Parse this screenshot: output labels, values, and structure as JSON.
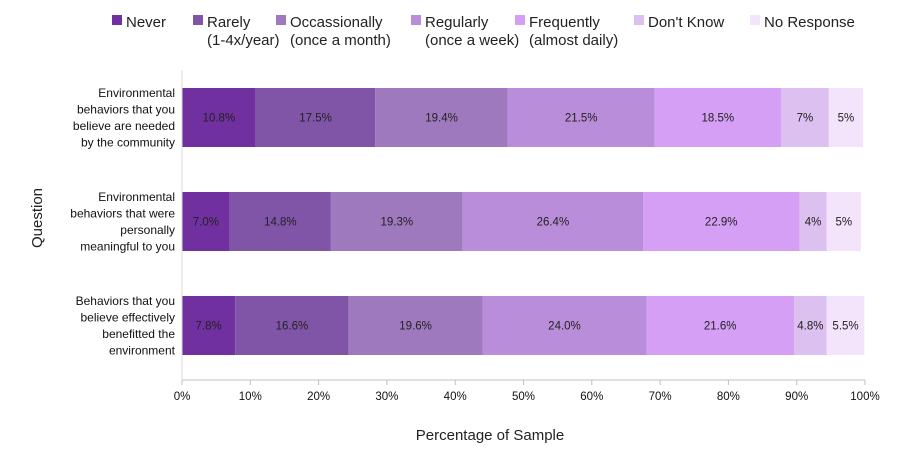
{
  "chart_data": {
    "type": "bar",
    "orientation": "horizontal",
    "stacked": true,
    "title": "",
    "xlabel": "Percentage of Sample",
    "ylabel": "Question",
    "xlim": [
      0,
      100
    ],
    "xticks": [
      "0%",
      "10%",
      "20%",
      "30%",
      "40%",
      "50%",
      "60%",
      "70%",
      "80%",
      "90%",
      "100%"
    ],
    "legend_position": "top",
    "categories": [
      [
        "Environmental",
        "behaviors that you",
        "believe are needed",
        "by the community"
      ],
      [
        "Environmental",
        "behaviors that were",
        "personally",
        "meaningful to you"
      ],
      [
        "Behaviors that you",
        "believe effectively",
        "benefitted the",
        "environment"
      ]
    ],
    "series": [
      {
        "name": [
          "Never"
        ],
        "color": "#7030a0",
        "values": [
          10.8,
          7.0,
          7.8
        ],
        "labels": [
          "10.8%",
          "7.0%",
          "7.8%"
        ]
      },
      {
        "name": [
          "Rarely",
          "(1-4x/year)"
        ],
        "color": "#8055a8",
        "values": [
          17.5,
          14.8,
          16.6
        ],
        "labels": [
          "17.5%",
          "14.8%",
          "16.6%"
        ]
      },
      {
        "name": [
          "Occassionally",
          "(once a month)"
        ],
        "color": "#9e79bd",
        "values": [
          19.4,
          19.3,
          19.6
        ],
        "labels": [
          "19.4%",
          "19.3%",
          "19.6%"
        ]
      },
      {
        "name": [
          "Regularly",
          "(once a week)"
        ],
        "color": "#b98dd9",
        "values": [
          21.5,
          26.4,
          24.0
        ],
        "labels": [
          "21.5%",
          "26.4%",
          "24.0%"
        ]
      },
      {
        "name": [
          "Frequently",
          "(almost daily)"
        ],
        "color": "#d59ff5",
        "values": [
          18.5,
          22.9,
          21.6
        ],
        "labels": [
          "18.5%",
          "22.9%",
          "21.6%"
        ]
      },
      {
        "name": [
          "Don't Know"
        ],
        "color": "#dcc0ef",
        "values": [
          7.0,
          4.0,
          4.8
        ],
        "labels": [
          "7%",
          "4%",
          "4.8%"
        ]
      },
      {
        "name": [
          "No Response"
        ],
        "color": "#f3e3fb",
        "values": [
          5.0,
          5.0,
          5.5
        ],
        "labels": [
          "5%",
          "5%",
          "5.5%"
        ]
      }
    ]
  }
}
